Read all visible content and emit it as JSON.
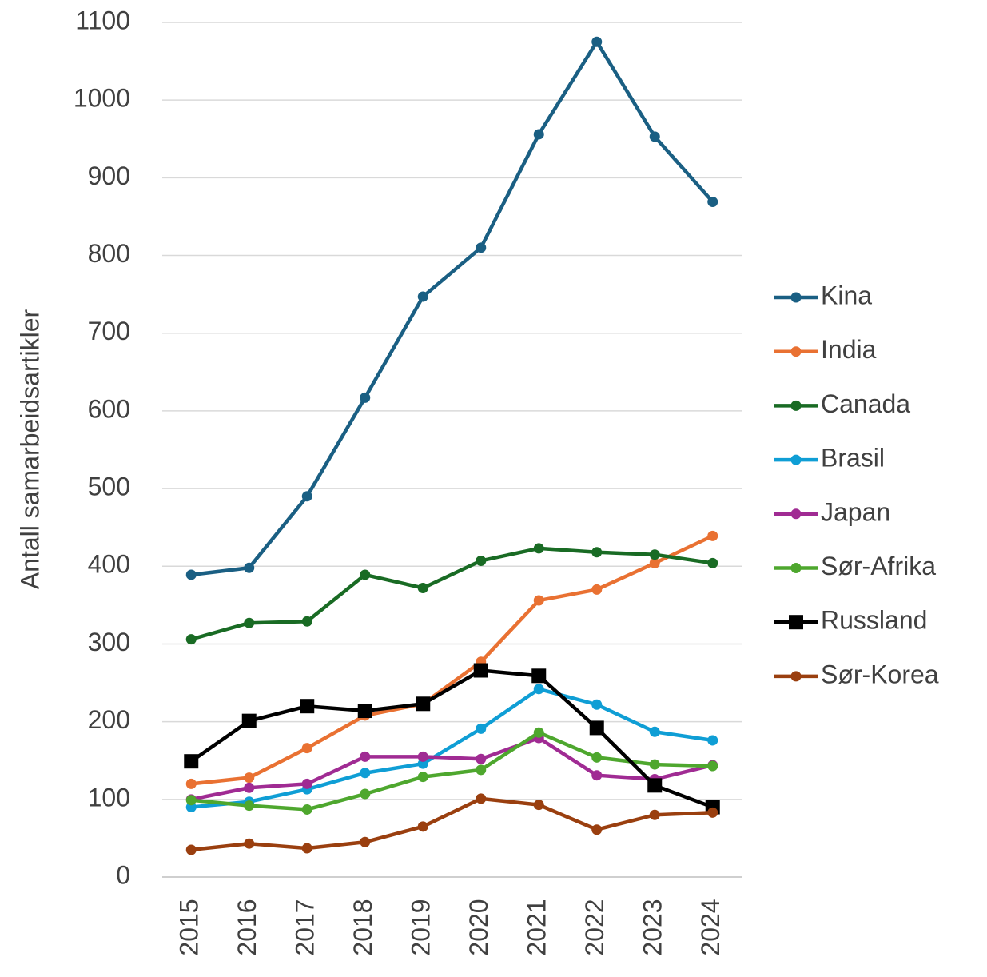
{
  "chart_data": {
    "type": "line",
    "y_label": "Antall samarbeidsartikler",
    "x": [
      "2015",
      "2016",
      "2017",
      "2018",
      "2019",
      "2020",
      "2021",
      "2022",
      "2023",
      "2024"
    ],
    "series": [
      {
        "name": "Kina",
        "color": "#1a5f83",
        "marker": "circle",
        "values": [
          389,
          398,
          490,
          617,
          747,
          810,
          956,
          1075,
          953,
          869
        ]
      },
      {
        "name": "India",
        "color": "#e97132",
        "marker": "circle",
        "values": [
          120,
          128,
          166,
          208,
          223,
          277,
          356,
          370,
          404,
          439
        ]
      },
      {
        "name": "Canada",
        "color": "#196b24",
        "marker": "circle",
        "values": [
          306,
          327,
          329,
          389,
          372,
          407,
          423,
          418,
          415,
          404
        ]
      },
      {
        "name": "Brasil",
        "color": "#0f9ed5",
        "marker": "circle",
        "values": [
          90,
          97,
          113,
          134,
          146,
          191,
          242,
          222,
          187,
          176
        ]
      },
      {
        "name": "Japan",
        "color": "#a02b93",
        "marker": "circle",
        "values": [
          100,
          115,
          120,
          155,
          155,
          152,
          179,
          131,
          126,
          144
        ]
      },
      {
        "name": "Sør-Afrika",
        "color": "#4ea72e",
        "marker": "circle",
        "values": [
          99,
          92,
          87,
          107,
          129,
          138,
          186,
          154,
          145,
          143
        ]
      },
      {
        "name": "Russland",
        "color": "#000000",
        "marker": "square",
        "values": [
          149,
          201,
          220,
          214,
          223,
          266,
          259,
          192,
          118,
          90
        ]
      },
      {
        "name": "Sør-Korea",
        "color": "#9a3f0f",
        "marker": "circle",
        "values": [
          35,
          43,
          37,
          45,
          65,
          101,
          93,
          61,
          80,
          83
        ]
      }
    ],
    "ylim": [
      0,
      1100
    ],
    "yticks": [
      0,
      100,
      200,
      300,
      400,
      500,
      600,
      700,
      800,
      900,
      1000,
      1100
    ],
    "grid": true,
    "legend": "right"
  }
}
